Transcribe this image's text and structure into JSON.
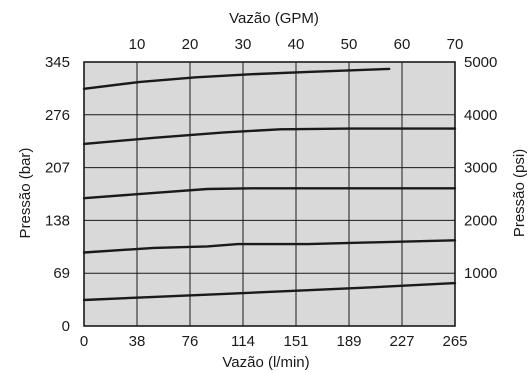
{
  "chart_data": {
    "type": "line",
    "title": "",
    "xlabel": "Vazão (l/min)",
    "xlabel_top": "Vazão (GPM)",
    "ylabel": "Pressão (bar)",
    "ylabel_right": "Pressão (psi)",
    "xlim": [
      0,
      265
    ],
    "ylim": [
      0,
      345
    ],
    "grid": true,
    "colors": {
      "plot_bg": "#d9d9d9",
      "line": "#1a1a1a",
      "grid": "#1a1a1a"
    },
    "x_ticks": [
      "0",
      "38",
      "76",
      "114",
      "151",
      "189",
      "227",
      "265"
    ],
    "x_top_ticks": [
      "10",
      "20",
      "30",
      "40",
      "50",
      "60",
      "70"
    ],
    "y_ticks": [
      "0",
      "69",
      "138",
      "207",
      "276",
      "345"
    ],
    "y_right_ticks": [
      "1000",
      "2000",
      "3000",
      "4000",
      "5000"
    ],
    "series": [
      {
        "points": [
          [
            0,
            34
          ],
          [
            50,
            38
          ],
          [
            100,
            42
          ],
          [
            150,
            46
          ],
          [
            200,
            50
          ],
          [
            265,
            56
          ]
        ]
      },
      {
        "points": [
          [
            0,
            96
          ],
          [
            50,
            102
          ],
          [
            88,
            104
          ],
          [
            110,
            107
          ],
          [
            160,
            107
          ],
          [
            200,
            109
          ],
          [
            265,
            112
          ]
        ]
      },
      {
        "points": [
          [
            0,
            167
          ],
          [
            50,
            174
          ],
          [
            88,
            179
          ],
          [
            120,
            180
          ],
          [
            180,
            180
          ],
          [
            265,
            180
          ]
        ]
      },
      {
        "points": [
          [
            0,
            238
          ],
          [
            50,
            246
          ],
          [
            100,
            253
          ],
          [
            140,
            257
          ],
          [
            190,
            258
          ],
          [
            265,
            258
          ]
        ]
      },
      {
        "points": [
          [
            0,
            310
          ],
          [
            40,
            319
          ],
          [
            80,
            325
          ],
          [
            120,
            329
          ],
          [
            160,
            332
          ],
          [
            218,
            336
          ]
        ]
      }
    ]
  }
}
